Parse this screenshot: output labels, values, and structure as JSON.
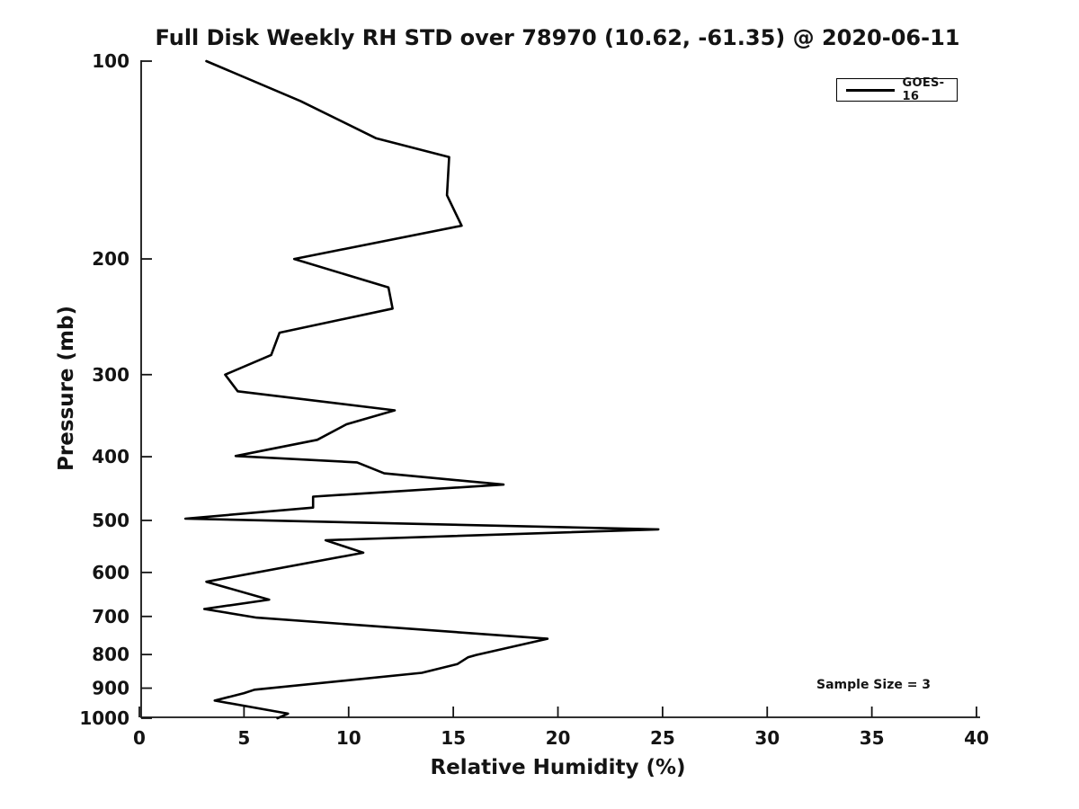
{
  "colors": {
    "line": "#000000",
    "background": "#ffffff",
    "text": "#141414"
  },
  "chart_data": {
    "type": "line",
    "title": "Full Disk Weekly RH STD over 78970 (10.62, -61.35) @ 2020-06-11",
    "xlabel": "Relative Humidity (%)",
    "ylabel": "Pressure (mb)",
    "xlim": [
      0,
      40
    ],
    "xticks": [
      0,
      5,
      10,
      15,
      20,
      25,
      30,
      35,
      40
    ],
    "ylim": [
      100,
      1000
    ],
    "yticks": [
      100,
      200,
      300,
      400,
      500,
      600,
      700,
      800,
      900,
      1000
    ],
    "yscale": "log",
    "y_inverted": true,
    "grid": false,
    "legend": {
      "position": "upper right",
      "entries": [
        {
          "label": "GOES-16",
          "color": "#000000"
        }
      ]
    },
    "annotation": "Sample Size = 3",
    "series": [
      {
        "name": "GOES-16",
        "color": "#000000",
        "points_rh_pressure": [
          [
            3.2,
            100
          ],
          [
            7.7,
            115
          ],
          [
            11.3,
            131
          ],
          [
            14.8,
            140
          ],
          [
            14.7,
            160
          ],
          [
            15.4,
            178
          ],
          [
            7.4,
            200
          ],
          [
            11.9,
            221
          ],
          [
            12.1,
            238
          ],
          [
            6.7,
            259
          ],
          [
            6.3,
            280
          ],
          [
            4.1,
            300
          ],
          [
            4.7,
            318
          ],
          [
            12.2,
            340
          ],
          [
            9.9,
            357
          ],
          [
            8.5,
            377
          ],
          [
            4.6,
            399
          ],
          [
            10.4,
            408
          ],
          [
            11.7,
            424
          ],
          [
            17.4,
            441
          ],
          [
            8.3,
            460
          ],
          [
            8.3,
            478
          ],
          [
            2.2,
            497
          ],
          [
            24.8,
            516
          ],
          [
            8.9,
            536
          ],
          [
            10.7,
            560
          ],
          [
            3.2,
            620
          ],
          [
            6.2,
            660
          ],
          [
            3.1,
            682
          ],
          [
            5.6,
            703
          ],
          [
            19.5,
            757
          ],
          [
            16.1,
            801
          ],
          [
            15.7,
            808
          ],
          [
            15.2,
            827
          ],
          [
            13.5,
            853
          ],
          [
            5.5,
            905
          ],
          [
            5.0,
            916
          ],
          [
            3.6,
            940
          ],
          [
            7.1,
            984
          ],
          [
            6.6,
            1000
          ]
        ]
      }
    ]
  }
}
